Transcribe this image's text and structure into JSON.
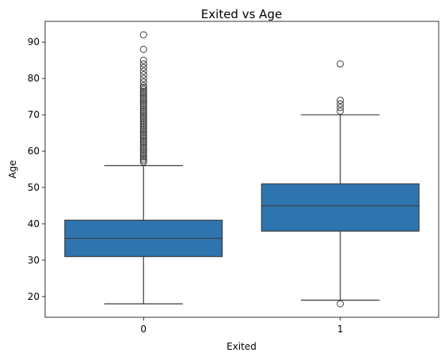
{
  "chart_data": {
    "type": "box",
    "title": "Exited vs Age",
    "xlabel": "Exited",
    "ylabel": "Age",
    "categories": [
      "0",
      "1"
    ],
    "ylim": [
      14.3,
      95.7
    ],
    "yticks": [
      20,
      30,
      40,
      50,
      60,
      70,
      80,
      90
    ],
    "grid": false,
    "box_color": "#2e75b0",
    "line_color": "#3d3d3d",
    "boxes": [
      {
        "category": "0",
        "whisker_low": 18,
        "q1": 31,
        "median": 36,
        "q3": 41,
        "whisker_high": 56,
        "outliers": [
          57,
          57.5,
          58,
          58.5,
          59,
          59.5,
          60,
          60.5,
          61,
          61.5,
          62,
          62.5,
          63,
          63.5,
          64,
          64.5,
          65,
          65.5,
          66,
          66.5,
          67,
          67.5,
          68,
          68.5,
          69,
          69.5,
          70,
          70.5,
          71,
          71.5,
          72,
          72.5,
          73,
          73.5,
          74,
          74.5,
          75,
          75.5,
          76,
          76.5,
          77,
          77.5,
          78,
          79,
          80,
          81,
          82,
          83,
          84,
          85,
          88,
          92
        ]
      },
      {
        "category": "1",
        "whisker_low": 19,
        "q1": 38,
        "median": 45,
        "q3": 51,
        "whisker_high": 70,
        "outliers": [
          18,
          71,
          72,
          73,
          74,
          84
        ]
      }
    ]
  }
}
